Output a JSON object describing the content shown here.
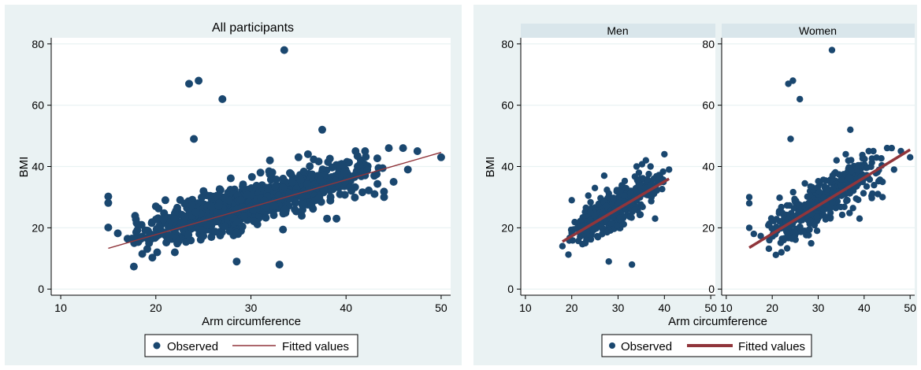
{
  "colors": {
    "outer_bg": "#eaf2f3",
    "plot_bg": "#ffffff",
    "strip_bg": "#d9e6eb",
    "grid": "#eaf2f3",
    "marker": "#1a476f",
    "fit_line": "#90353b"
  },
  "chart_data": [
    {
      "type": "scatter",
      "title": "All participants",
      "xlabel": "Arm circumference",
      "ylabel": "BMI",
      "xlim": [
        9,
        51
      ],
      "ylim": [
        -2,
        82
      ],
      "xticks": [
        "10",
        "20",
        "30",
        "40",
        "50"
      ],
      "yticks": [
        "0",
        "20",
        "40",
        "60",
        "80"
      ],
      "grid": true,
      "legend": {
        "position": "bottom",
        "entries": [
          "Observed",
          "Fitted values"
        ]
      },
      "series": [
        {
          "name": "Observed",
          "kind": "markers"
        },
        {
          "name": "Fitted values",
          "kind": "line",
          "x": [
            15,
            50
          ],
          "y": [
            13.3,
            44.6
          ]
        }
      ],
      "cloud": {
        "x_range": [
          17,
          44
        ],
        "y_at_x_min": 16,
        "y_at_x_max": 40,
        "spread": 3.2
      },
      "outliers": [
        [
          15,
          30.2
        ],
        [
          15,
          28.1
        ],
        [
          15,
          20.1
        ],
        [
          16,
          18.2
        ],
        [
          17.5,
          16.5
        ],
        [
          22,
          12
        ],
        [
          23.5,
          67
        ],
        [
          24.5,
          68
        ],
        [
          27,
          62
        ],
        [
          24,
          49
        ],
        [
          28.5,
          9
        ],
        [
          33,
          8
        ],
        [
          33.5,
          78
        ],
        [
          37.5,
          52
        ],
        [
          38,
          23
        ],
        [
          39,
          23
        ],
        [
          41,
          45
        ],
        [
          42,
          45
        ],
        [
          43,
          31
        ],
        [
          44,
          30
        ],
        [
          44.5,
          46
        ],
        [
          45,
          35
        ],
        [
          46,
          46
        ],
        [
          46.5,
          39
        ],
        [
          47.5,
          45
        ],
        [
          50,
          43
        ],
        [
          36,
          44
        ],
        [
          31,
          38
        ],
        [
          32,
          42
        ],
        [
          35,
          43
        ],
        [
          20,
          27
        ],
        [
          21,
          29
        ]
      ]
    },
    {
      "type": "scatter",
      "title": "Men",
      "xlabel": "Arm circumference",
      "ylabel": "BMI",
      "xlim": [
        9,
        51
      ],
      "ylim": [
        -2,
        82
      ],
      "xticks": [
        "10",
        "20",
        "30",
        "40",
        "50"
      ],
      "yticks": [
        "0",
        "20",
        "40",
        "60",
        "80"
      ],
      "grid": true,
      "series": [
        {
          "name": "Observed",
          "kind": "markers"
        },
        {
          "name": "Fitted values",
          "kind": "line",
          "x": [
            18,
            41
          ],
          "y": [
            15.5,
            36
          ]
        }
      ],
      "cloud": {
        "x_range": [
          19,
          40
        ],
        "y_at_x_min": 17,
        "y_at_x_max": 36,
        "spread": 2.8
      },
      "outliers": [
        [
          18,
          14
        ],
        [
          20,
          29
        ],
        [
          28,
          9
        ],
        [
          33,
          8
        ],
        [
          34,
          40
        ],
        [
          37,
          40
        ],
        [
          38,
          23
        ],
        [
          40,
          44
        ],
        [
          41,
          39
        ],
        [
          27,
          37
        ],
        [
          25,
          33
        ],
        [
          36,
          42
        ]
      ]
    },
    {
      "type": "scatter",
      "title": "Women",
      "xlabel": "Arm circumference",
      "ylabel": "BMI",
      "xlim": [
        9,
        51
      ],
      "ylim": [
        -2,
        82
      ],
      "xticks": [
        "10",
        "20",
        "30",
        "40",
        "50"
      ],
      "yticks": [
        "0",
        "20",
        "40",
        "60",
        "80"
      ],
      "grid": true,
      "series": [
        {
          "name": "Observed",
          "kind": "markers"
        },
        {
          "name": "Fitted values",
          "kind": "line",
          "x": [
            15,
            50
          ],
          "y": [
            13.5,
            45.5
          ]
        }
      ],
      "cloud": {
        "x_range": [
          17,
          44
        ],
        "y_at_x_min": 16,
        "y_at_x_max": 40,
        "spread": 3.4
      },
      "outliers": [
        [
          15,
          30
        ],
        [
          15,
          28
        ],
        [
          15,
          20
        ],
        [
          16,
          18
        ],
        [
          22,
          12
        ],
        [
          23.5,
          67
        ],
        [
          24.5,
          68
        ],
        [
          26,
          62
        ],
        [
          24,
          49
        ],
        [
          33,
          78
        ],
        [
          37,
          52
        ],
        [
          39,
          23
        ],
        [
          41,
          45
        ],
        [
          42,
          45
        ],
        [
          43,
          31
        ],
        [
          44,
          30
        ],
        [
          45,
          46
        ],
        [
          46,
          46
        ],
        [
          46.5,
          39
        ],
        [
          48,
          45
        ],
        [
          50,
          43
        ],
        [
          44,
          35
        ],
        [
          36,
          44
        ],
        [
          34,
          42
        ]
      ]
    }
  ],
  "right_figure": {
    "xlabel": "Arm circumference",
    "legend": {
      "position": "bottom",
      "entries": [
        "Observed",
        "Fitted values"
      ]
    }
  }
}
